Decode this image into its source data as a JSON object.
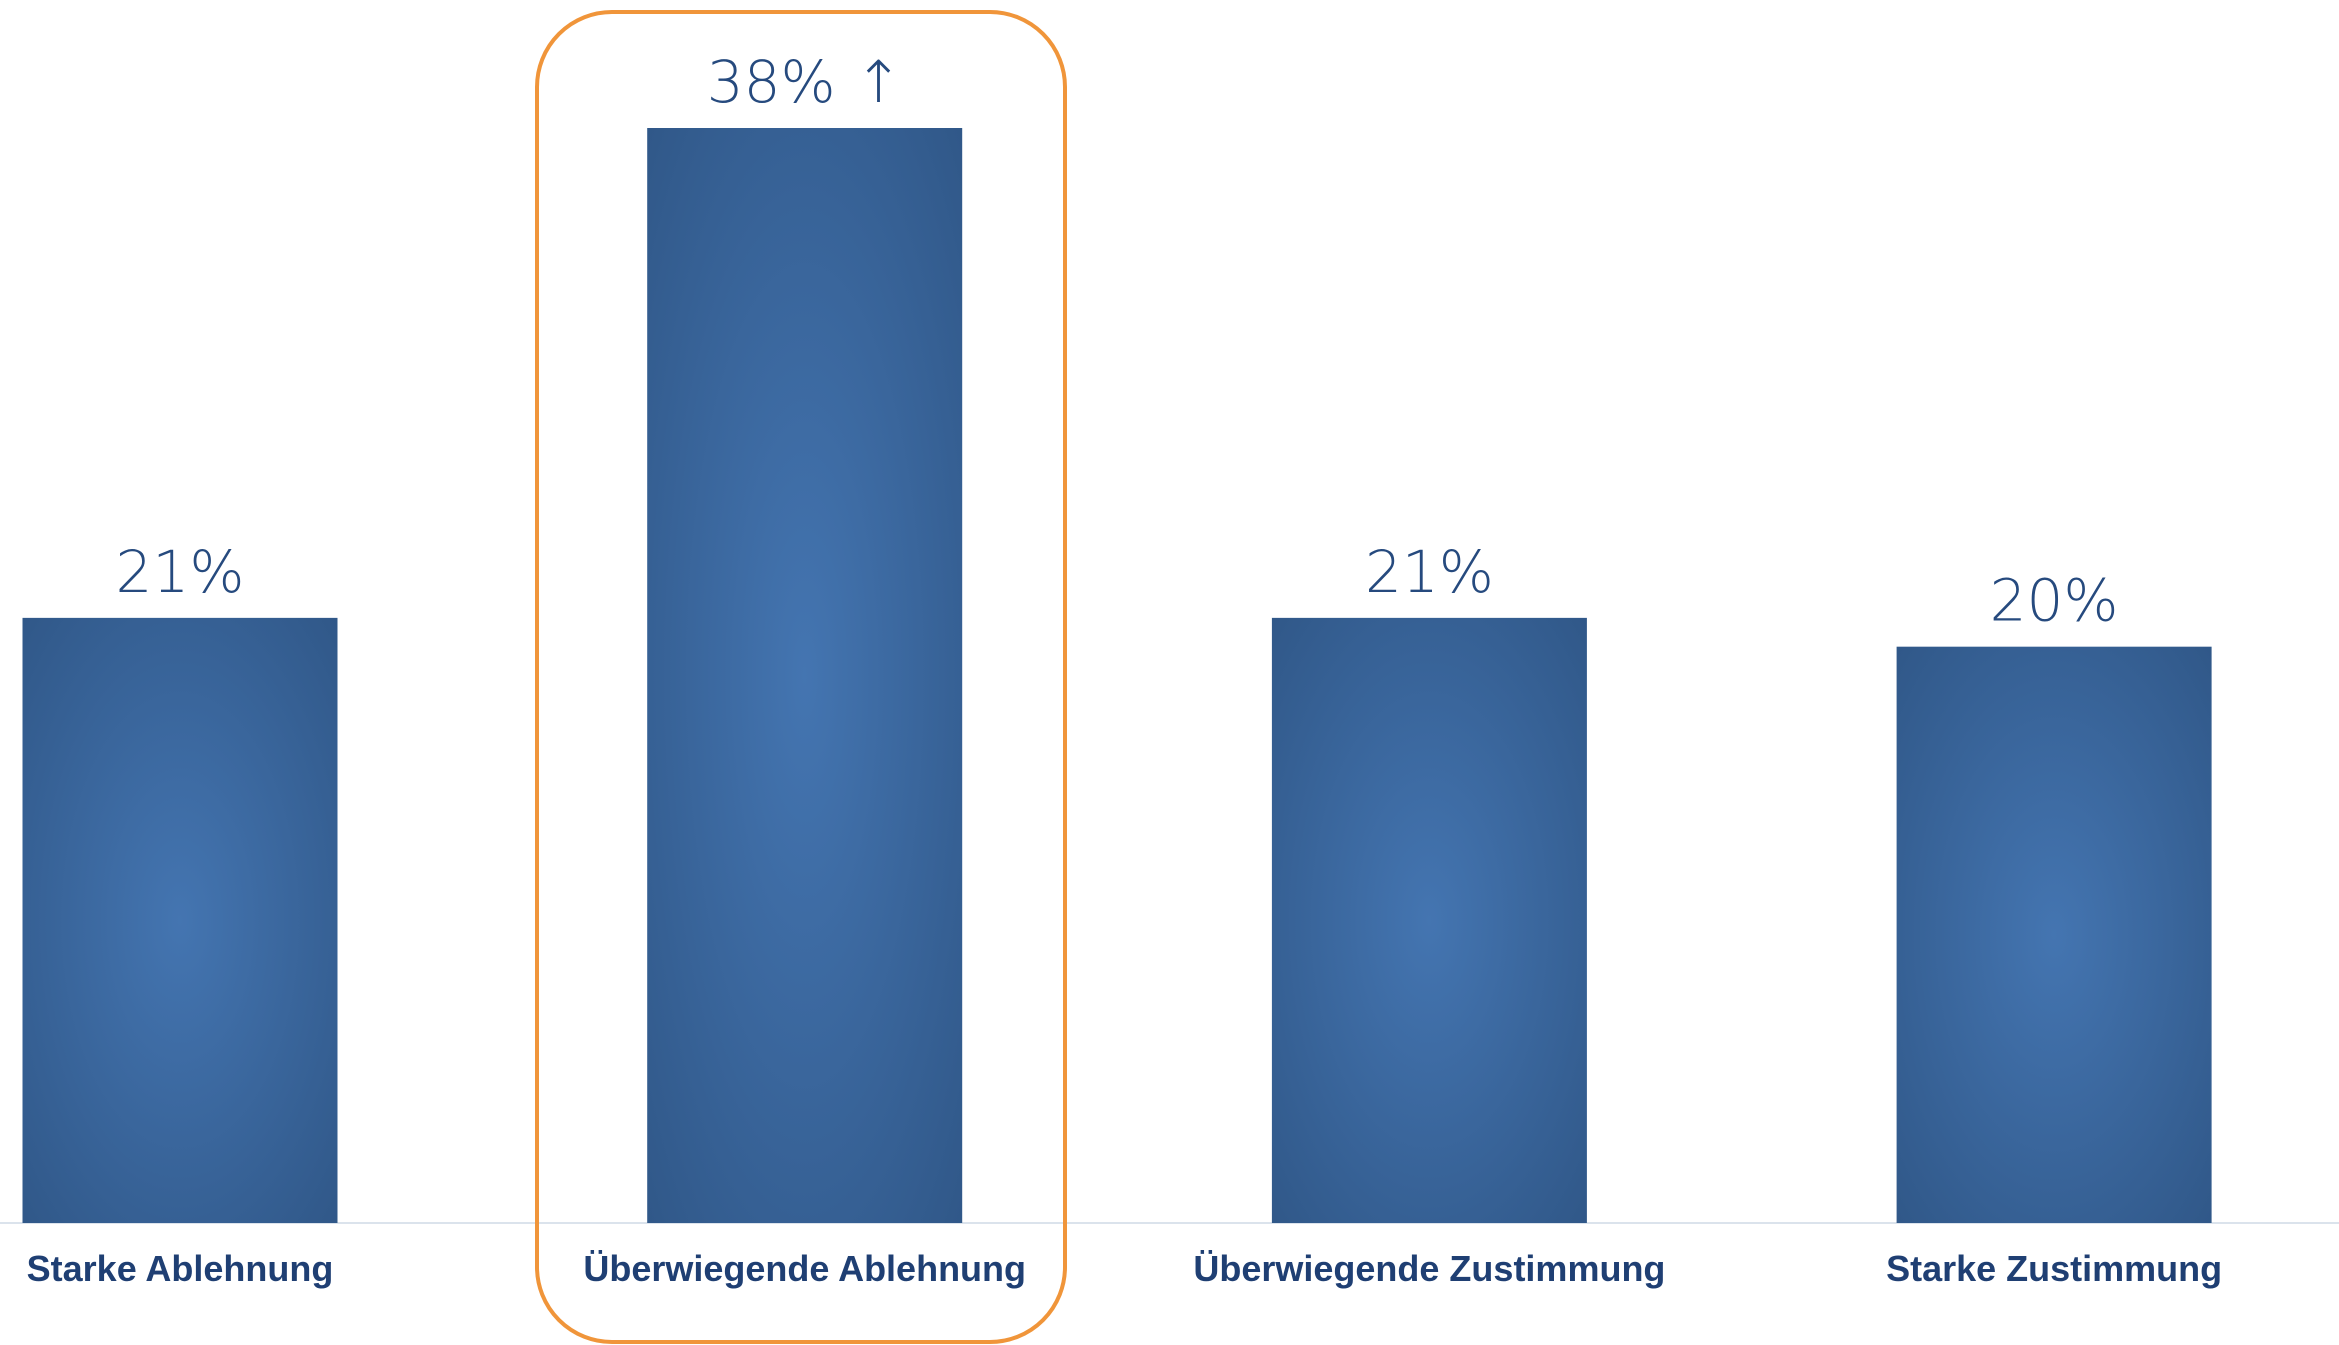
{
  "chart_data": {
    "type": "bar",
    "categories": [
      "Starke Ablehnung",
      "Überwiegende Ablehnung",
      "Überwiegende Zustimmung",
      "Starke Zustimmung"
    ],
    "values": [
      21,
      38,
      21,
      20
    ],
    "value_labels": [
      "21%",
      "38% ↑",
      "21%",
      "20%"
    ],
    "color": "#3d6aa3"
  }
}
